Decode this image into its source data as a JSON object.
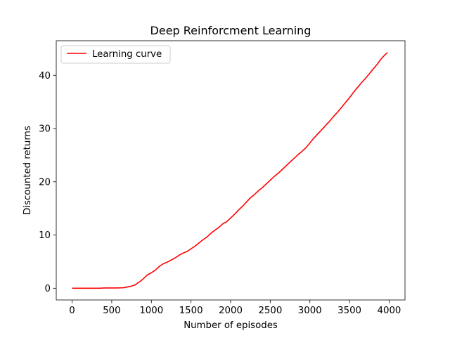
{
  "chart_data": {
    "type": "line",
    "title": "Deep Reinforcment Learning",
    "xlabel": "Number of episodes",
    "ylabel": "Discounted returns",
    "xlim": [
      -200,
      4200
    ],
    "ylim": [
      -2.2,
      46.5
    ],
    "xticks": [
      0,
      500,
      1000,
      1500,
      2000,
      2500,
      3000,
      3500,
      4000
    ],
    "yticks": [
      0,
      10,
      20,
      30,
      40
    ],
    "grid": false,
    "legend_position": "top-left",
    "series": [
      {
        "name": "Learning curve",
        "color": "#ff0000",
        "x": [
          0,
          100,
          200,
          300,
          350,
          400,
          500,
          550,
          600,
          650,
          700,
          750,
          790,
          820,
          860,
          900,
          950,
          1000,
          1050,
          1100,
          1150,
          1200,
          1250,
          1300,
          1350,
          1400,
          1450,
          1500,
          1550,
          1600,
          1650,
          1700,
          1750,
          1800,
          1850,
          1900,
          1950,
          2000,
          2050,
          2100,
          2150,
          2200,
          2250,
          2300,
          2350,
          2400,
          2450,
          2500,
          2550,
          2600,
          2650,
          2700,
          2750,
          2800,
          2850,
          2900,
          2950,
          3000,
          3050,
          3100,
          3150,
          3200,
          3250,
          3300,
          3350,
          3400,
          3450,
          3500,
          3550,
          3600,
          3650,
          3700,
          3750,
          3800,
          3850,
          3900,
          3950,
          3980
        ],
        "y": [
          0.0,
          0.0,
          0.0,
          0.0,
          0.0,
          0.05,
          0.05,
          0.05,
          0.07,
          0.1,
          0.25,
          0.4,
          0.6,
          0.9,
          1.3,
          1.8,
          2.5,
          2.9,
          3.4,
          4.1,
          4.6,
          4.9,
          5.3,
          5.7,
          6.2,
          6.6,
          6.9,
          7.4,
          7.9,
          8.5,
          9.1,
          9.6,
          10.3,
          10.9,
          11.4,
          12.1,
          12.5,
          13.2,
          13.9,
          14.7,
          15.4,
          16.2,
          17.0,
          17.6,
          18.3,
          18.9,
          19.6,
          20.3,
          21.0,
          21.6,
          22.3,
          23.0,
          23.7,
          24.4,
          25.1,
          25.7,
          26.4,
          27.3,
          28.2,
          29.0,
          29.8,
          30.6,
          31.4,
          32.3,
          33.1,
          34.0,
          34.9,
          35.8,
          36.8,
          37.7,
          38.6,
          39.4,
          40.3,
          41.2,
          42.1,
          43.1,
          43.9,
          44.3
        ]
      }
    ]
  }
}
